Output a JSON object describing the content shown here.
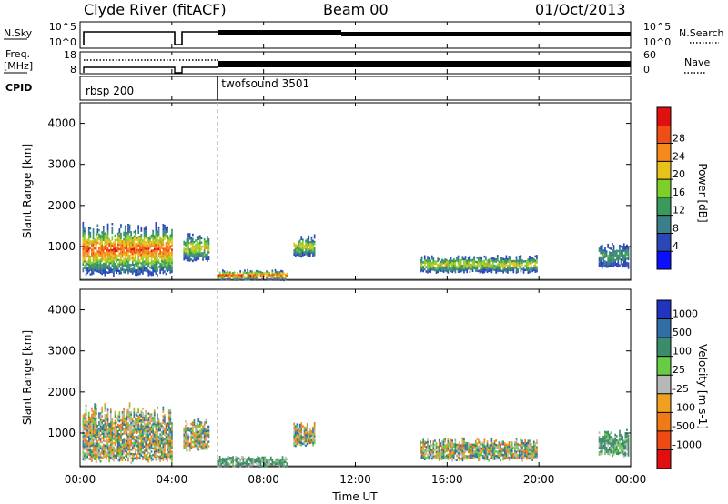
{
  "header": {
    "station": "Clyde River (fitACF)",
    "beam": "Beam 00",
    "date": "01/Oct/2013"
  },
  "sky_panel": {
    "left_label": "N.Sky",
    "left_ticks": [
      "10^5",
      "10^0"
    ],
    "right_ticks": [
      "10^5",
      "10^0"
    ],
    "right_label": "N.Search"
  },
  "freq_panel": {
    "left_label_1": "Freq.",
    "left_label_2": "[MHz]",
    "left_ticks": [
      "18",
      "8"
    ],
    "right_ticks": [
      "60",
      "0"
    ],
    "right_label": "Nave"
  },
  "cpid_panel": {
    "label": "CPID",
    "modes": [
      {
        "name": "rbsp 200",
        "start_hour": 0
      },
      {
        "name": "twofsound 3501",
        "start_hour": 6
      }
    ]
  },
  "axes": {
    "xlabel": "Time UT",
    "xticks": [
      "00:00",
      "04:00",
      "08:00",
      "12:00",
      "16:00",
      "20:00",
      "00:00"
    ],
    "ylabel": "Slant Range [km]",
    "yticks": [
      "1000",
      "2000",
      "3000",
      "4000"
    ]
  },
  "power_colorbar": {
    "label": "Power [dB]",
    "ticks": [
      "4",
      "8",
      "12",
      "16",
      "20",
      "24",
      "28"
    ],
    "colors": [
      "#0a10ff",
      "#2a47b8",
      "#3a7f8a",
      "#3a9a5a",
      "#7fcf2a",
      "#e6c21a",
      "#f58a1a",
      "#ef4f14",
      "#e01010"
    ]
  },
  "velocity_colorbar": {
    "label": "Velocity [m s-1]",
    "ticks": [
      "1000",
      "500",
      "100",
      "25",
      "-25",
      "-100",
      "-500",
      "-1000"
    ],
    "colors": [
      "#2233c0",
      "#2f6fa5",
      "#3a8c6a",
      "#66cc44",
      "#b8b8b8",
      "#f0a020",
      "#f07a18",
      "#f04a14",
      "#e01010"
    ]
  },
  "chart_data": [
    {
      "type": "heatmap",
      "title": "",
      "xlabel": "",
      "ylabel": "Slant Range [km]",
      "quantity": "Power [dB]",
      "xlim_hours": [
        0,
        24
      ],
      "ylim_km": [
        180,
        4500
      ],
      "regions": [
        {
          "t0": 0.1,
          "t1": 4.0,
          "r0": 300,
          "r1": 1600,
          "level": "high"
        },
        {
          "t0": 4.5,
          "t1": 5.6,
          "r0": 650,
          "r1": 1350,
          "level": "medium"
        },
        {
          "t0": 6.0,
          "t1": 9.0,
          "r0": 200,
          "r1": 450,
          "level": "high"
        },
        {
          "t0": 9.3,
          "t1": 10.2,
          "r0": 750,
          "r1": 1300,
          "level": "medium"
        },
        {
          "t0": 14.8,
          "t1": 19.9,
          "r0": 380,
          "r1": 800,
          "level": "medium"
        },
        {
          "t0": 22.6,
          "t1": 23.9,
          "r0": 500,
          "r1": 1100,
          "level": "low"
        }
      ]
    },
    {
      "type": "heatmap",
      "title": "",
      "xlabel": "Time UT",
      "ylabel": "Slant Range [km]",
      "quantity": "Velocity [m s-1]",
      "xlim_hours": [
        0,
        24
      ],
      "ylim_km": [
        180,
        4500
      ],
      "regions": [
        {
          "t0": 0.1,
          "t1": 4.0,
          "r0": 300,
          "r1": 1750,
          "level": "mixed"
        },
        {
          "t0": 4.5,
          "t1": 5.6,
          "r0": 600,
          "r1": 1400,
          "level": "mixed"
        },
        {
          "t0": 6.0,
          "t1": 9.0,
          "r0": 200,
          "r1": 450,
          "level": "low"
        },
        {
          "t0": 9.3,
          "t1": 10.2,
          "r0": 700,
          "r1": 1300,
          "level": "mixed"
        },
        {
          "t0": 14.8,
          "t1": 19.9,
          "r0": 350,
          "r1": 900,
          "level": "mixed"
        },
        {
          "t0": 22.6,
          "t1": 23.9,
          "r0": 450,
          "r1": 1100,
          "level": "low"
        }
      ]
    }
  ]
}
